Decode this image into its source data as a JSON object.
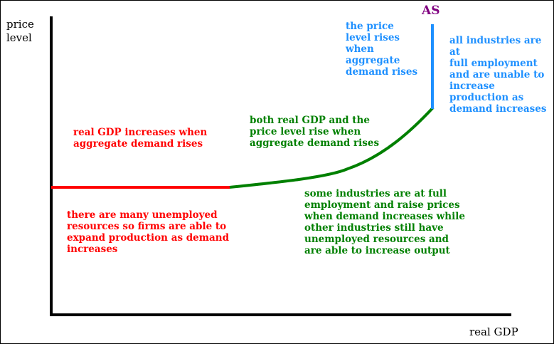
{
  "axes": {
    "y_label": "price\nlevel",
    "x_label": "real GDP"
  },
  "curve": {
    "name": "AS",
    "name_color": "#800080"
  },
  "segments": {
    "horizontal": {
      "color": "#ff0000",
      "label_above": "real GDP increases when\naggregate demand rises",
      "label_below": "there are many unemployed\nresources so firms are able to\nexpand production as demand\nincreases"
    },
    "upward": {
      "color": "#008000",
      "label_above": "both real GDP and the\nprice level rise when\naggregate demand rises",
      "label_below": "some industries are at full\nemployment and raise prices\nwhen demand increases while\nother industries still have\nunemployed resources and\nare able to increase output"
    },
    "vertical": {
      "color": "#1e90ff",
      "label_left": "the price\nlevel rises\nwhen\naggregate\ndemand rises",
      "label_right": "all industries are at\nfull employment\nand are unable to\nincrease\nproduction as\ndemand increases"
    }
  }
}
